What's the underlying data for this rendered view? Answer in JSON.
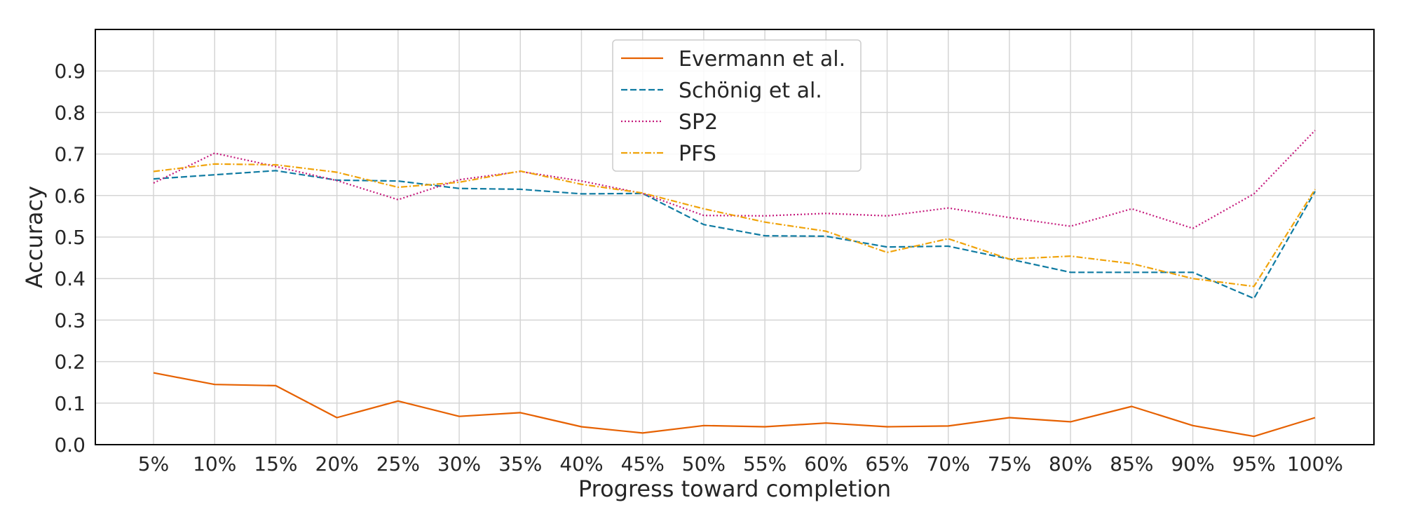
{
  "chart_data": {
    "type": "line",
    "title": "",
    "xlabel": "Progress toward completion",
    "ylabel": "Accuracy",
    "categories": [
      "5%",
      "10%",
      "15%",
      "20%",
      "25%",
      "30%",
      "35%",
      "40%",
      "45%",
      "50%",
      "55%",
      "60%",
      "65%",
      "70%",
      "75%",
      "80%",
      "85%",
      "90%",
      "95%",
      "100%"
    ],
    "ylim": [
      0,
      1.0
    ],
    "yticks": [
      "0.0",
      "0.1",
      "0.2",
      "0.3",
      "0.4",
      "0.5",
      "0.6",
      "0.7",
      "0.8",
      "0.9"
    ],
    "grid": true,
    "legend_position": "top-center",
    "series": [
      {
        "name": "Evermann et al.",
        "color": "#e66101",
        "line_style": "solid",
        "values": [
          0.173,
          0.145,
          0.142,
          0.065,
          0.105,
          0.068,
          0.077,
          0.043,
          0.028,
          0.046,
          0.043,
          0.052,
          0.043,
          0.045,
          0.065,
          0.055,
          0.092,
          0.046,
          0.02,
          0.065
        ]
      },
      {
        "name": "Schönig et al.",
        "color": "#0f7ba2",
        "line_style": "dashed",
        "values": [
          0.64,
          0.65,
          0.66,
          0.637,
          0.635,
          0.617,
          0.615,
          0.604,
          0.605,
          0.53,
          0.503,
          0.502,
          0.476,
          0.478,
          0.447,
          0.415,
          0.415,
          0.415,
          0.352,
          0.61
        ]
      },
      {
        "name": "SP2",
        "color": "#c51b7d",
        "line_style": "dotted",
        "values": [
          0.63,
          0.702,
          0.67,
          0.636,
          0.59,
          0.638,
          0.658,
          0.635,
          0.605,
          0.552,
          0.551,
          0.557,
          0.551,
          0.57,
          0.547,
          0.526,
          0.568,
          0.521,
          0.604,
          0.757
        ]
      },
      {
        "name": "PFS",
        "color": "#f0a30a",
        "line_style": "dashdot",
        "values": [
          0.658,
          0.676,
          0.674,
          0.656,
          0.62,
          0.632,
          0.659,
          0.627,
          0.606,
          0.568,
          0.536,
          0.514,
          0.463,
          0.496,
          0.447,
          0.454,
          0.436,
          0.4,
          0.381,
          0.615
        ]
      }
    ]
  }
}
